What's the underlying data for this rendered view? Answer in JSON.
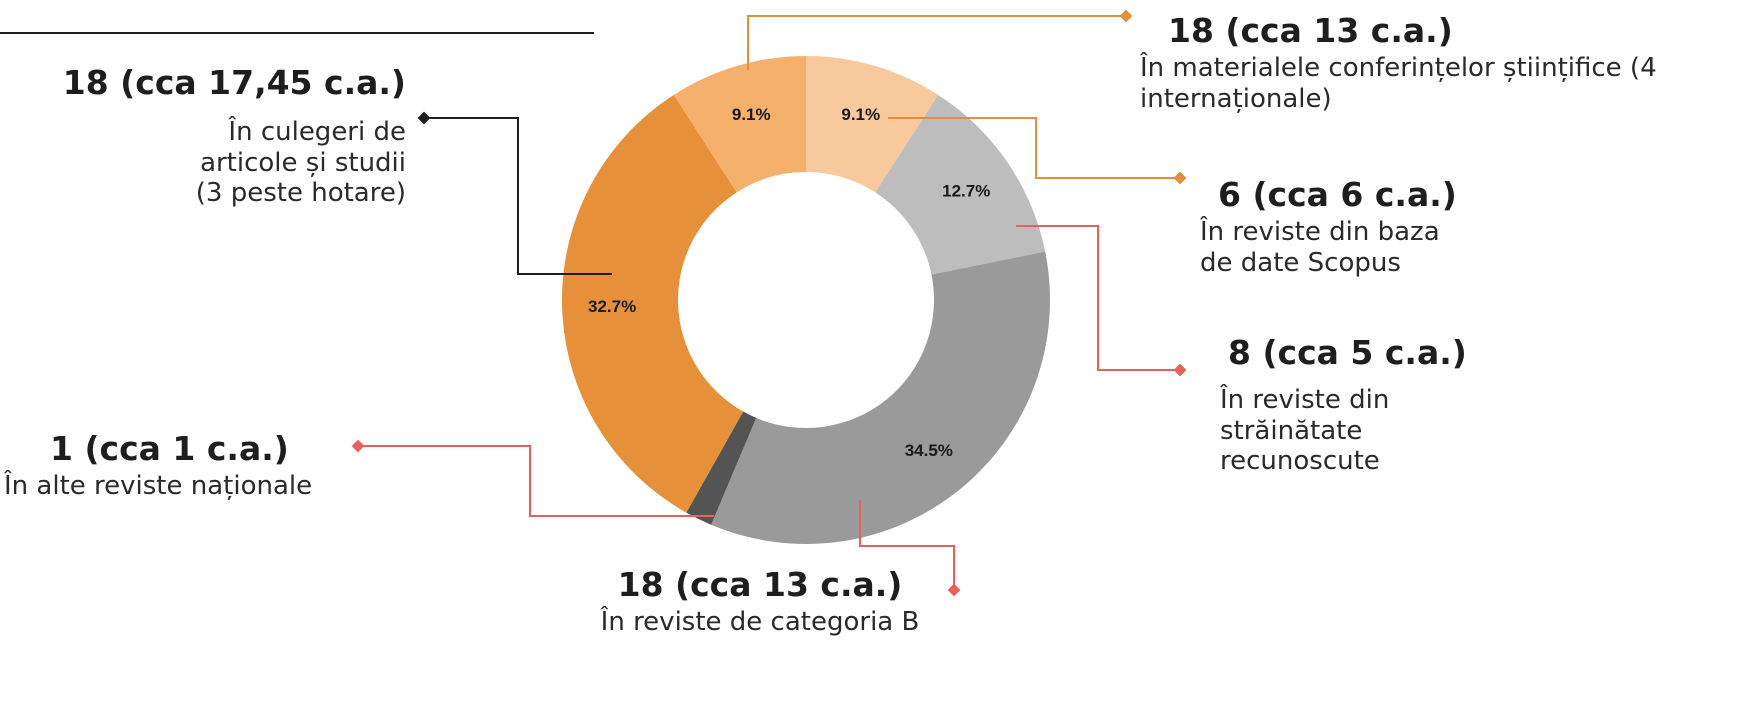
{
  "chart_data": {
    "type": "pie",
    "style": "donut",
    "start_angle_deg": 0,
    "direction": "clockwise",
    "slices": [
      {
        "key": "conf",
        "value": 9.1,
        "label": "9.1%",
        "color": "#f8c99c",
        "line_color": "#e2903a",
        "title": "18 (cca 13 c.a.)",
        "desc": "În materialele conferințelor științifice (4 internaționale)"
      },
      {
        "key": "scopus",
        "value": 12.7,
        "label": "12.7%",
        "color": "#bdbdbd",
        "line_color": "#e2903a",
        "title": "6 (cca 6 c.a.)",
        "desc": "În reviste din baza de date Scopus"
      },
      {
        "key": "strain",
        "value": 34.5,
        "label": "34.5%",
        "color": "#9a9a9a",
        "line_color": "#e8605a",
        "title": "8 (cca 5 c.a.)",
        "desc": "În reviste din străinătate recunoscute"
      },
      {
        "key": "catB",
        "value": 1.8,
        "label": "",
        "color": "#545454",
        "line_color": "#e8605a",
        "title": "18 (cca 13 c.a.)",
        "desc": "În reviste de categoria B"
      },
      {
        "key": "culegeri",
        "value": 32.7,
        "label": "32.7%",
        "color": "#e6913a",
        "line_color": "#1e1e1e",
        "title": "18 (cca 17,45 c.a.)",
        "desc": "În culegeri de articole și studii (3 peste hotare)"
      },
      {
        "key": "nationale",
        "value": 9.1,
        "label": "9.1%",
        "color": "#f5b06b",
        "line_color": "#e8605a",
        "title": "1 (cca 1 c.a.)",
        "desc": "În alte reviste naționale"
      }
    ]
  }
}
